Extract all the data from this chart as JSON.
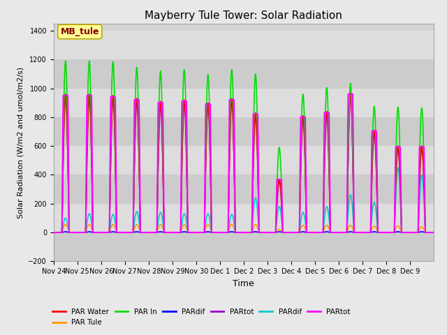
{
  "title": "Mayberry Tule Tower: Solar Radiation",
  "xlabel": "Time",
  "ylabel": "Solar Radiation (W/m2 and umol/m2/s)",
  "ylim": [
    -200,
    1450
  ],
  "yticks": [
    -200,
    0,
    200,
    400,
    600,
    800,
    1000,
    1200,
    1400
  ],
  "fig_bg_color": "#e8e8e8",
  "plot_bg_color": "#d4d4d4",
  "series": [
    {
      "label": "PAR Water",
      "color": "#ff0000",
      "lw": 1.2
    },
    {
      "label": "PAR Tule",
      "color": "#ff9900",
      "lw": 1.2
    },
    {
      "label": "PAR In",
      "color": "#00dd00",
      "lw": 1.2
    },
    {
      "label": "PARdif",
      "color": "#0000ff",
      "lw": 1.2
    },
    {
      "label": "PARtot",
      "color": "#9900cc",
      "lw": 1.2
    },
    {
      "label": "PARdif",
      "color": "#00cccc",
      "lw": 1.2
    },
    {
      "label": "PARtot",
      "color": "#ff00ff",
      "lw": 1.5
    }
  ],
  "xtick_labels": [
    "Nov 24",
    "Nov 25",
    "Nov 26",
    "Nov 27",
    "Nov 28",
    "Nov 29",
    "Nov 30",
    "Dec 1",
    "Dec 2",
    "Dec 3",
    "Dec 4",
    "Dec 5",
    "Dec 6",
    "Dec 7",
    "Dec 8",
    "Dec 9"
  ],
  "annotation_text": "MB_tule",
  "annotation_bg": "#ffff99",
  "annotation_border": "#bbaa00",
  "annotation_text_color": "#880000",
  "par_in_peaks": [
    1190,
    1190,
    1185,
    1145,
    1120,
    1130,
    1095,
    1130,
    1100,
    590,
    960,
    1005,
    1035,
    875,
    870,
    865
  ],
  "par_water_peaks": [
    960,
    960,
    950,
    930,
    910,
    920,
    900,
    930,
    830,
    370,
    810,
    840,
    970,
    710,
    600,
    600
  ],
  "par_tule_peaks": [
    55,
    55,
    55,
    55,
    55,
    55,
    55,
    55,
    55,
    20,
    50,
    50,
    50,
    45,
    45,
    40
  ],
  "pardif_cyan_peaks": [
    100,
    130,
    125,
    145,
    140,
    130,
    130,
    125,
    240,
    180,
    140,
    180,
    260,
    210,
    450,
    400
  ],
  "day_start": 0.35,
  "day_end": 0.65
}
